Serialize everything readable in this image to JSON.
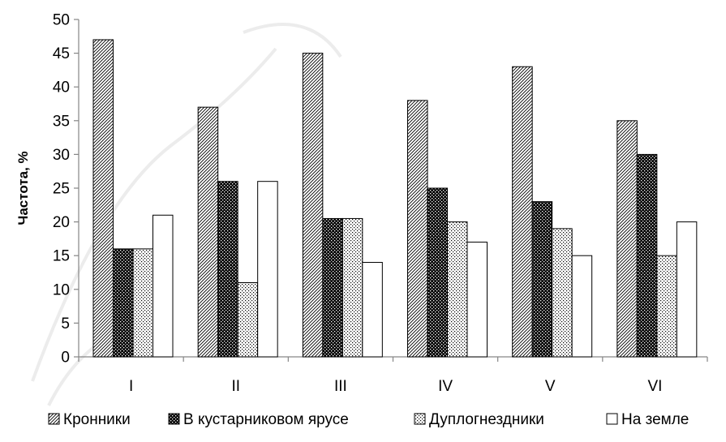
{
  "chart_data": {
    "type": "bar",
    "categories": [
      "I",
      "II",
      "III",
      "IV",
      "V",
      "VI"
    ],
    "series": [
      {
        "name": "Кронники",
        "values": [
          47,
          37,
          45,
          38,
          43,
          35
        ],
        "pattern": "diagonal"
      },
      {
        "name": "В кустарниковом ярусе",
        "values": [
          16,
          26,
          20.5,
          25,
          23,
          30
        ],
        "pattern": "checker"
      },
      {
        "name": "Дуплогнездники",
        "values": [
          16,
          11,
          20.5,
          20,
          19,
          15
        ],
        "pattern": "dots"
      },
      {
        "name": "На земле",
        "values": [
          21,
          26,
          14,
          17,
          15,
          20
        ],
        "pattern": "none"
      }
    ],
    "title": "",
    "xlabel": "",
    "ylabel": "Частота, %",
    "ylim": [
      0,
      50
    ],
    "yticks": [
      "0",
      "5",
      "10",
      "15",
      "20",
      "25",
      "30",
      "35",
      "40",
      "45",
      "50"
    ],
    "grid": false,
    "legend_position": "bottom"
  },
  "colors": {
    "bar_edge": "#000000",
    "axis": "#868686",
    "background": "#ffffff"
  }
}
